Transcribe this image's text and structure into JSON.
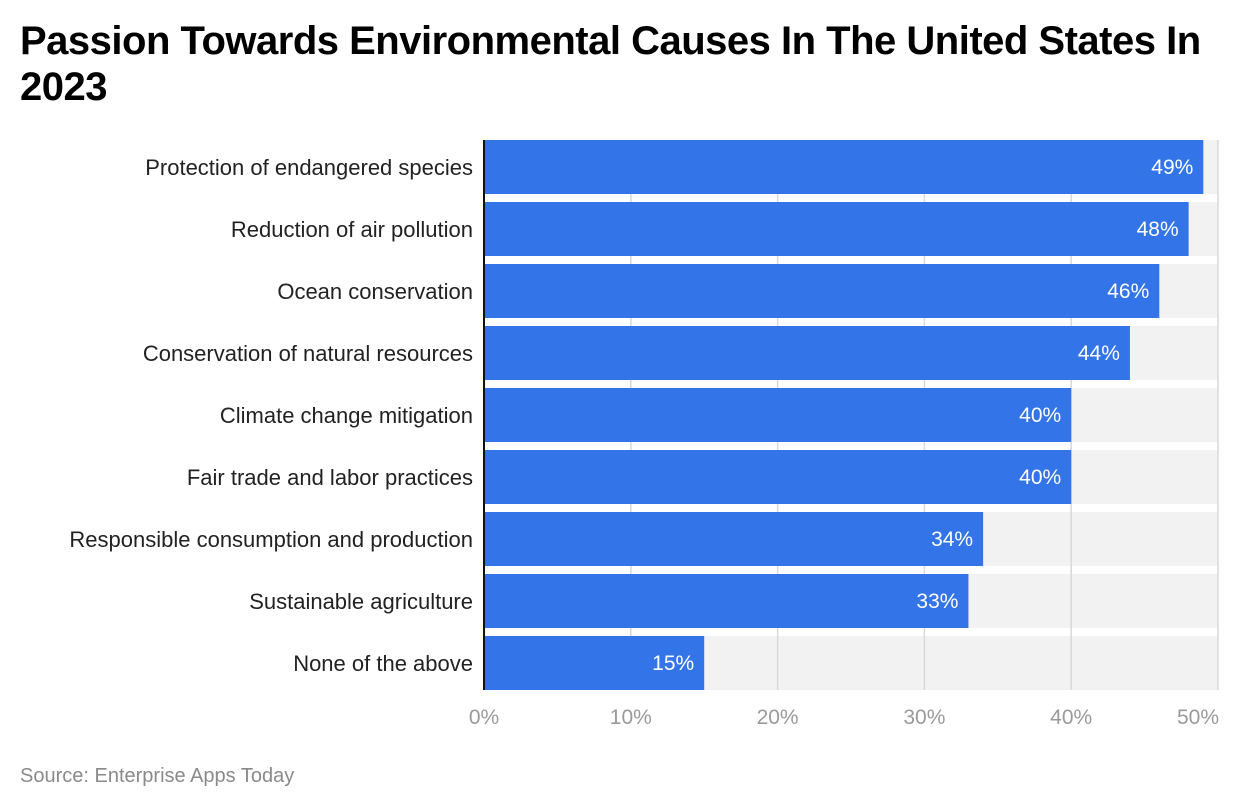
{
  "title": "Passion Towards Environmental Causes In The United States In 2023",
  "source": "Source: Enterprise Apps Today",
  "colors": {
    "bar": "#3375E8",
    "track": "#F2F2F2",
    "grid": "#D9D9D9",
    "axis": "#111111"
  },
  "chart_data": {
    "type": "bar",
    "orientation": "horizontal",
    "title": "Passion Towards Environmental Causes In The United States In 2023",
    "xlabel": "",
    "ylabel": "",
    "categories": [
      "Protection of endangered species",
      "Reduction of air pollution",
      "Ocean conservation",
      "Conservation of natural resources",
      "Climate change mitigation",
      "Fair trade and labor practices",
      "Responsible consumption and production",
      "Sustainable agriculture",
      "None of the above"
    ],
    "values": [
      49,
      48,
      46,
      44,
      40,
      40,
      34,
      33,
      15
    ],
    "value_labels": [
      "49%",
      "48%",
      "46%",
      "44%",
      "40%",
      "40%",
      "34%",
      "33%",
      "15%"
    ],
    "xlim": [
      0,
      50
    ],
    "xticks": [
      0,
      10,
      20,
      30,
      40,
      50
    ],
    "xtick_labels": [
      "0%",
      "10%",
      "20%",
      "30%",
      "40%",
      "50%"
    ],
    "grid": true,
    "legend": "none"
  }
}
